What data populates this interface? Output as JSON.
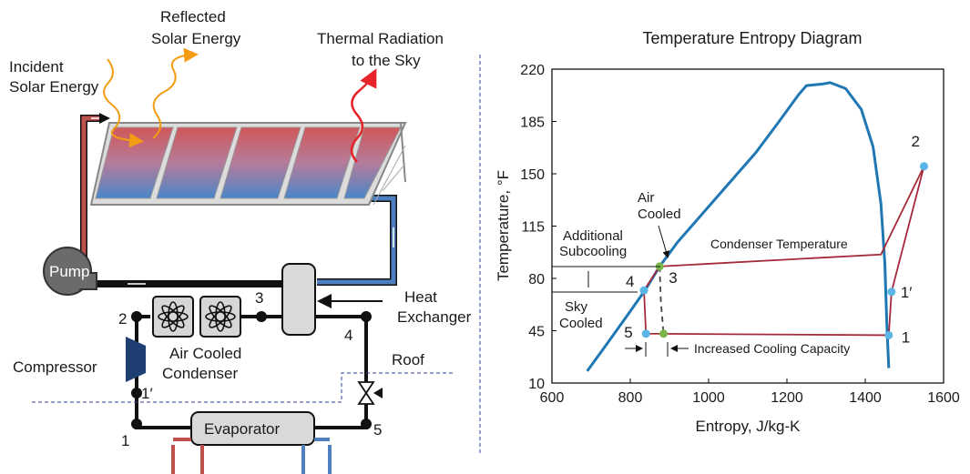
{
  "left_diagram": {
    "labels": {
      "incident": [
        "Incident",
        "Solar Energy"
      ],
      "reflected": [
        "Reflected",
        "Solar Energy"
      ],
      "thermal": [
        "Thermal Radiation",
        "to the Sky"
      ],
      "pump": "Pump",
      "heat_exchanger": [
        "Heat",
        "Exchanger"
      ],
      "air_cooled_condenser": [
        "Air Cooled",
        "Condenser"
      ],
      "compressor": "Compressor",
      "roof": "Roof",
      "evaporator": "Evaporator"
    },
    "nodes": [
      "1",
      "1′",
      "2",
      "3",
      "4",
      "5"
    ],
    "colors": {
      "hot_pipe": "#c0504d",
      "cold_pipe": "#4f7fc0",
      "solar_arrow": "#f39c12",
      "thermal_arrow": "#e8242b",
      "compressor": "#1f3f73",
      "roof_line": "#2f3f9f"
    },
    "icons": [
      "pump-icon",
      "fan-icon",
      "valve-icon",
      "solar-panel-icon"
    ]
  },
  "chart_data": {
    "type": "line",
    "title": "Temperature Entropy Diagram",
    "xlabel": "Entropy, J/kg-K",
    "ylabel": "Temperature, °F",
    "xlim": [
      600,
      1600
    ],
    "ylim": [
      10,
      220
    ],
    "x_ticks": [
      "600",
      "800",
      "1000",
      "1200",
      "1400",
      "1600"
    ],
    "y_ticks": [
      "10",
      "45",
      "80",
      "115",
      "150",
      "185",
      "220"
    ],
    "series": [
      {
        "type": "saturation_dome",
        "color": "#1f77b4",
        "x": [
          690,
          740,
          800,
          840,
          875,
          920,
          980,
          1050,
          1120,
          1180,
          1230,
          1250,
          1290,
          1310,
          1350,
          1390,
          1420,
          1440,
          1450,
          1455,
          1460
        ],
        "y": [
          18,
          36,
          58,
          73,
          88,
          104,
          122,
          143,
          164,
          185,
          203,
          209,
          210,
          211,
          207,
          193,
          168,
          130,
          90,
          50,
          20
        ]
      },
      {
        "type": "cycle",
        "color": "#a52a3a",
        "x": [
          1460,
          1467,
          1550,
          1440,
          875,
          835,
          840,
          1460
        ],
        "y": [
          42,
          71,
          155,
          96,
          88,
          72,
          43,
          42
        ]
      },
      {
        "type": "cycle_dashed",
        "color": "#444444",
        "x": [
          875,
          878,
          885
        ],
        "y": [
          88,
          65,
          43
        ]
      }
    ],
    "points": [
      {
        "label": "1",
        "x": 1460,
        "y": 42,
        "color": "#5ab4e6"
      },
      {
        "label": "1′",
        "x": 1467,
        "y": 71,
        "color": "#5ab4e6"
      },
      {
        "label": "2",
        "x": 1550,
        "y": 155,
        "color": "#5ab4e6"
      },
      {
        "label": "3",
        "x": 875,
        "y": 88,
        "color": "#7ab648"
      },
      {
        "label": "4",
        "x": 835,
        "y": 72,
        "color": "#5ab4e6"
      },
      {
        "label": "5",
        "x": 840,
        "y": 43,
        "color": "#5ab4e6"
      },
      {
        "label": "",
        "x": 885,
        "y": 43,
        "color": "#7ab648"
      }
    ],
    "annotations": {
      "air_cooled": [
        "Air",
        "Cooled"
      ],
      "additional_subcooling": [
        "Additional",
        "Subcooling"
      ],
      "sky_cooled": [
        "Sky",
        "Cooled"
      ],
      "condenser_temperature": "Condenser Temperature",
      "increased_cooling_capacity": "Increased Cooling Capacity"
    }
  }
}
